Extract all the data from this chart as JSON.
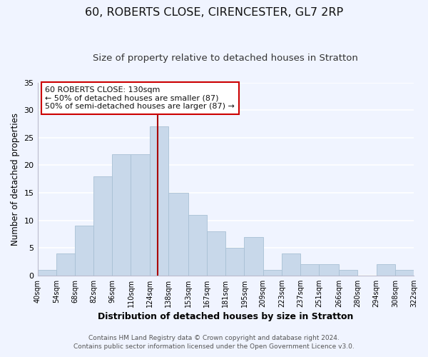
{
  "title": "60, ROBERTS CLOSE, CIRENCESTER, GL7 2RP",
  "subtitle": "Size of property relative to detached houses in Stratton",
  "xlabel": "Distribution of detached houses by size in Stratton",
  "ylabel": "Number of detached properties",
  "bar_color": "#c8d8ea",
  "bar_edge_color": "#a8c0d4",
  "vline_color": "#aa0000",
  "vline_x": 130,
  "ylim": [
    0,
    35
  ],
  "yticks": [
    0,
    5,
    10,
    15,
    20,
    25,
    30,
    35
  ],
  "bin_edges": [
    40,
    54,
    68,
    82,
    96,
    110,
    124,
    138,
    153,
    167,
    181,
    195,
    209,
    223,
    237,
    251,
    266,
    280,
    294,
    308,
    322
  ],
  "bin_labels": [
    "40sqm",
    "54sqm",
    "68sqm",
    "82sqm",
    "96sqm",
    "110sqm",
    "124sqm",
    "138sqm",
    "153sqm",
    "167sqm",
    "181sqm",
    "195sqm",
    "209sqm",
    "223sqm",
    "237sqm",
    "251sqm",
    "266sqm",
    "280sqm",
    "294sqm",
    "308sqm",
    "322sqm"
  ],
  "counts": [
    1,
    4,
    9,
    18,
    22,
    22,
    27,
    15,
    11,
    8,
    5,
    7,
    1,
    4,
    2,
    2,
    1,
    0,
    2,
    1
  ],
  "annotation_title": "60 ROBERTS CLOSE: 130sqm",
  "annotation_line1": "← 50% of detached houses are smaller (87)",
  "annotation_line2": "50% of semi-detached houses are larger (87) →",
  "footer1": "Contains HM Land Registry data © Crown copyright and database right 2024.",
  "footer2": "Contains public sector information licensed under the Open Government Licence v3.0.",
  "background_color": "#f0f4ff",
  "title_fontsize": 11.5,
  "subtitle_fontsize": 9.5,
  "annotation_box_edge_color": "#cc0000",
  "annotation_box_face_color": "#ffffff"
}
